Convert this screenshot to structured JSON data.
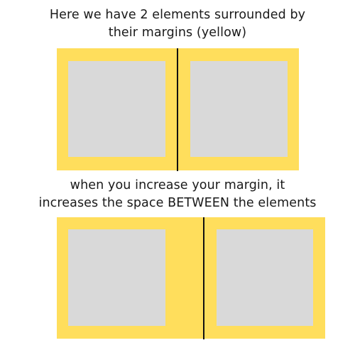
{
  "top_caption": {
    "line1": "Here we have 2 elements surrounded by",
    "line2": "their margins (yellow)"
  },
  "bottom_caption": {
    "line1": "when you increase your margin, it",
    "line2": "increases the space BETWEEN the elements"
  },
  "colors": {
    "margin": "#ffde5c",
    "element": "#d9d9d9",
    "divider": "#111111",
    "background": "#ffffff"
  }
}
